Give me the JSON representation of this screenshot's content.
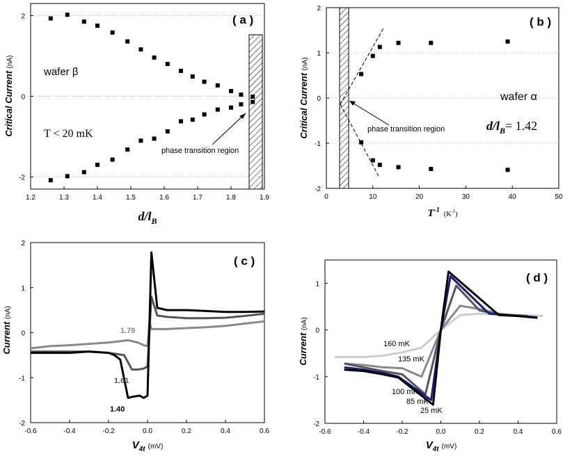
{
  "chart_data": [
    {
      "panel": "(a)",
      "type": "scatter",
      "xlabel_main": "d/l",
      "xlabel_sub": "B",
      "ylabel": "Critical Current",
      "yunit": "(nA)",
      "xlim": [
        1.2,
        1.9
      ],
      "ylim": [
        -2.3,
        2.3
      ],
      "xticks": [
        "1.2",
        "1.3",
        "1.4",
        "1.5",
        "1.6",
        "1.7",
        "1.8",
        "1.9"
      ],
      "yticks": [
        "-2",
        "0",
        "2"
      ],
      "series": [
        {
          "x": [
            1.26,
            1.31,
            1.36,
            1.4,
            1.445,
            1.49,
            1.53,
            1.57,
            1.61,
            1.65,
            1.685,
            1.72,
            1.76,
            1.8,
            1.83,
            1.865
          ],
          "y": [
            1.93,
            2.02,
            1.85,
            1.75,
            1.58,
            1.36,
            1.16,
            0.96,
            0.8,
            0.63,
            0.49,
            0.36,
            0.27,
            0.13,
            0.04,
            -0.01
          ]
        },
        {
          "x": [
            1.26,
            1.31,
            1.36,
            1.4,
            1.445,
            1.49,
            1.53,
            1.57,
            1.61,
            1.65,
            1.685,
            1.72,
            1.76,
            1.8,
            1.83,
            1.865
          ],
          "y": [
            -2.08,
            -1.98,
            -1.88,
            -1.7,
            -1.57,
            -1.32,
            -1.1,
            -1.05,
            -0.87,
            -0.62,
            -0.58,
            -0.45,
            -0.33,
            -0.28,
            -0.2,
            -0.14
          ]
        }
      ],
      "annotations": [
        "wafer β",
        "T < 20 mK",
        "phase transition region"
      ]
    },
    {
      "panel": "(b)",
      "type": "scatter",
      "xlabel_main": "T",
      "xlabel_sup": "-1",
      "xunit": "(K",
      "xunit_sup": "-1",
      "xunit_close": ")",
      "ylabel": "Critical Current",
      "yunit": "(nA)",
      "xlim": [
        0,
        50
      ],
      "ylim": [
        -2,
        2
      ],
      "xticks": [
        "0",
        "10",
        "20",
        "30",
        "40",
        "50"
      ],
      "yticks": [
        "-2",
        "-1",
        "0",
        "1",
        "2"
      ],
      "series": [
        {
          "x": [
            7.5,
            10,
            11.5,
            15.5,
            22.5,
            39
          ],
          "y": [
            0.53,
            0.93,
            1.13,
            1.22,
            1.22,
            1.25
          ]
        },
        {
          "x": [
            7.5,
            10,
            11.5,
            15.5,
            22.5,
            39
          ],
          "y": [
            -0.98,
            -1.38,
            -1.48,
            -1.53,
            -1.57,
            -1.59
          ]
        }
      ],
      "annotations": [
        "wafer α",
        "phase transition region",
        "d/l",
        "B",
        "= 1.42"
      ]
    },
    {
      "panel": "(c)",
      "type": "line",
      "xlabel_main": "V",
      "xlabel_sub": "4t",
      "xunit": "(mV)",
      "ylabel": "Current",
      "yunit": "(nA)",
      "xlim": [
        -0.6,
        0.6
      ],
      "ylim": [
        -2,
        2
      ],
      "xticks": [
        "-0.6",
        "-0.4",
        "-0.2",
        "0.0",
        "0.2",
        "0.4",
        "0.6"
      ],
      "yticks": [
        "-2",
        "-1",
        "0",
        "1",
        "2"
      ],
      "series": [
        {
          "name": "1.40",
          "x": [
            -0.6,
            -0.5,
            -0.4,
            -0.3,
            -0.2,
            -0.17,
            -0.14,
            -0.1,
            -0.07,
            -0.04,
            -0.02,
            0.0,
            0.02,
            0.05,
            0.1,
            0.2,
            0.3,
            0.4,
            0.5,
            0.6
          ],
          "y": [
            -0.45,
            -0.45,
            -0.45,
            -0.42,
            -0.45,
            -0.5,
            -0.6,
            -1.45,
            -1.42,
            -1.4,
            -1.45,
            -1.4,
            1.78,
            0.55,
            0.5,
            0.5,
            0.48,
            0.46,
            0.46,
            0.47
          ]
        },
        {
          "name": "1.61",
          "x": [
            -0.6,
            -0.5,
            -0.4,
            -0.3,
            -0.2,
            -0.15,
            -0.12,
            -0.08,
            -0.05,
            -0.02,
            0.0,
            0.02,
            0.05,
            0.1,
            0.2,
            0.3,
            0.4,
            0.5,
            0.6
          ],
          "y": [
            -0.42,
            -0.42,
            -0.42,
            -0.42,
            -0.45,
            -0.48,
            -0.5,
            -0.82,
            -0.82,
            -0.8,
            -0.75,
            0.8,
            0.38,
            0.35,
            0.32,
            0.32,
            0.33,
            0.37,
            0.42
          ]
        },
        {
          "name": "1.79",
          "x": [
            -0.6,
            -0.5,
            -0.4,
            -0.3,
            -0.2,
            -0.1,
            -0.05,
            -0.02,
            0.0,
            0.01,
            0.02,
            0.05,
            0.1,
            0.2,
            0.3,
            0.4,
            0.5,
            0.6
          ],
          "y": [
            -0.35,
            -0.3,
            -0.28,
            -0.25,
            -0.22,
            -0.17,
            -0.22,
            -0.28,
            -0.3,
            0.25,
            0.08,
            0.08,
            0.08,
            0.1,
            0.12,
            0.15,
            0.2,
            0.25
          ]
        }
      ],
      "annotations": [
        "1.79",
        "1.61",
        "1.40"
      ]
    },
    {
      "panel": "(d)",
      "type": "line",
      "xlabel_main": "V",
      "xlabel_sub": "4t",
      "xunit": "(mV)",
      "ylabel": "Current",
      "yunit": "(nA)",
      "xlim": [
        -0.6,
        0.6
      ],
      "ylim": [
        -2,
        1.5
      ],
      "xticks": [
        "-0.6",
        "-0.4",
        "-0.2",
        "0.0",
        "0.2",
        "0.4",
        "0.6"
      ],
      "yticks": [
        "-2",
        "-1",
        "0",
        "1"
      ],
      "series": [
        {
          "name": "25 mK",
          "x": [
            -0.5,
            -0.4,
            -0.3,
            -0.22,
            -0.04,
            0.0,
            0.04,
            0.3,
            0.4,
            0.5
          ],
          "y": [
            -0.85,
            -0.88,
            -0.95,
            -1.02,
            -1.6,
            0.0,
            1.25,
            0.32,
            0.3,
            0.26
          ]
        },
        {
          "name": "85 mK",
          "x": [
            -0.5,
            -0.4,
            -0.3,
            -0.22,
            -0.05,
            0.0,
            0.05,
            0.25,
            0.4,
            0.5
          ],
          "y": [
            -0.8,
            -0.85,
            -0.92,
            -1.0,
            -1.5,
            0.0,
            1.15,
            0.35,
            0.3,
            0.27
          ]
        },
        {
          "name": "100 mK",
          "x": [
            -0.5,
            -0.4,
            -0.3,
            -0.2,
            -0.08,
            0.0,
            0.08,
            0.2,
            0.3,
            0.45
          ],
          "y": [
            -0.72,
            -0.8,
            -0.88,
            -0.95,
            -1.38,
            0.0,
            0.95,
            0.42,
            0.33,
            0.3
          ]
        },
        {
          "name": "135 mK",
          "x": [
            -0.5,
            -0.4,
            -0.3,
            -0.2,
            -0.1,
            0.0,
            0.1,
            0.2,
            0.3,
            0.45
          ],
          "y": [
            -0.72,
            -0.75,
            -0.8,
            -0.82,
            -1.0,
            0.0,
            0.52,
            0.45,
            0.35,
            0.28
          ]
        },
        {
          "name": "160 mK",
          "x": [
            -0.55,
            -0.4,
            -0.3,
            -0.2,
            -0.1,
            0.0,
            0.1,
            0.2,
            0.3,
            0.45,
            0.53
          ],
          "y": [
            -0.58,
            -0.58,
            -0.55,
            -0.48,
            -0.38,
            0.0,
            0.32,
            0.35,
            0.34,
            0.32,
            0.3
          ]
        }
      ],
      "annotations": [
        "160 mK",
        "135 mK",
        "100 mK",
        "85 mK",
        "25 mK"
      ]
    }
  ],
  "panel_labels": [
    "( a )",
    "( b )",
    "( c )",
    "( d )"
  ],
  "colors": {
    "black": "#000000",
    "gray1": "#555555",
    "gray2": "#888888",
    "gray3": "#aaaaaa",
    "gray4": "#cccccc",
    "blue": "#1a1a80",
    "grid": "#bbbbbb"
  }
}
